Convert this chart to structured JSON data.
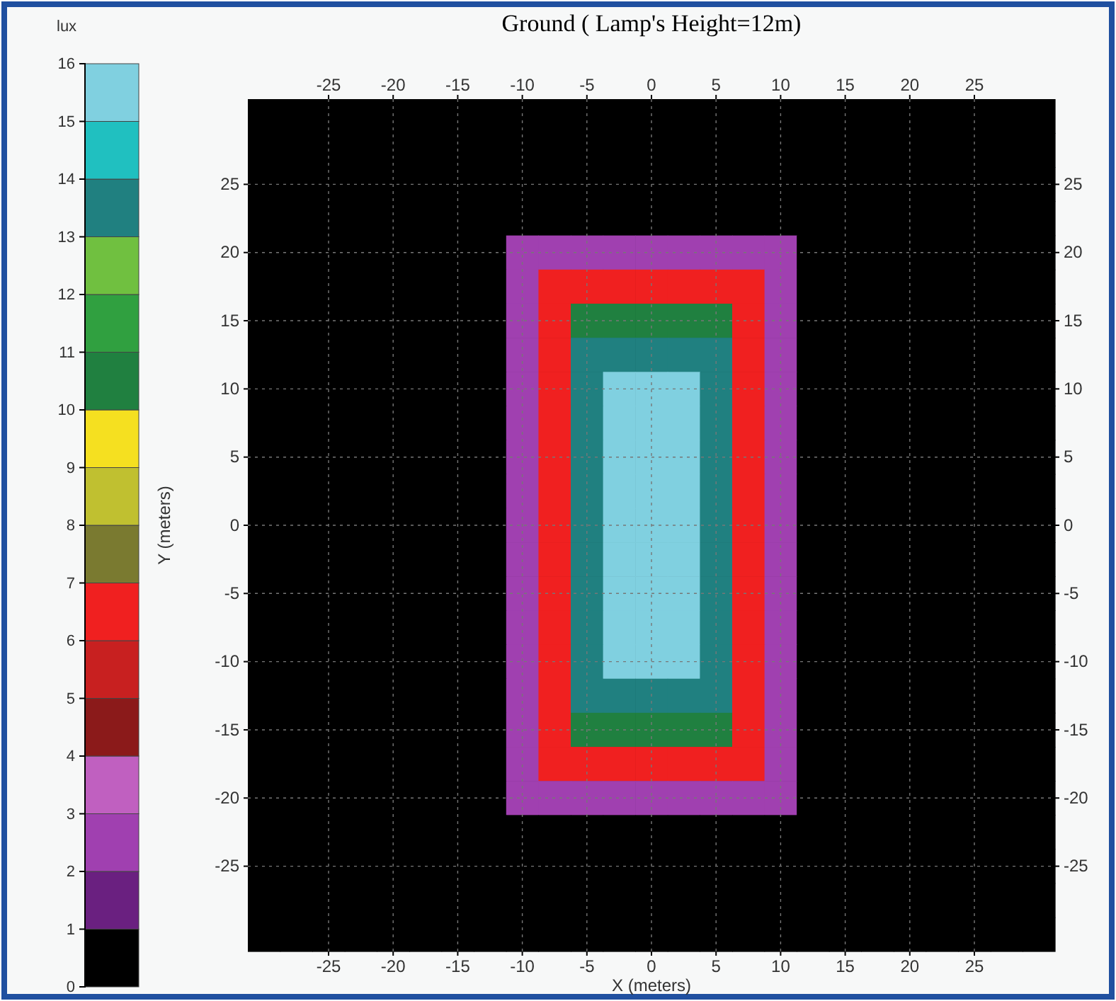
{
  "chart_data": {
    "type": "heatmap",
    "title": "Ground ( Lamp's Height=12m)",
    "xlabel": "X (meters)",
    "ylabel": "Y (meters)",
    "clabel": "lux",
    "categories": [
      null,
      null,
      "-25",
      null,
      "-20",
      null,
      "-15",
      null,
      "-10",
      null,
      "-5",
      null,
      "0",
      null,
      "5",
      null,
      "10",
      null,
      "15",
      null,
      "20",
      null,
      "25",
      null,
      null
    ],
    "y_categories": [
      null,
      null,
      "25",
      null,
      "20",
      null,
      "15",
      null,
      "10",
      null,
      "5",
      null,
      "0",
      null,
      "-5",
      null,
      "-10",
      null,
      "-15",
      null,
      "-20",
      null,
      "-25",
      null,
      null
    ],
    "y2_categories": [
      null,
      null,
      "25",
      null,
      "20",
      null,
      "15",
      null,
      "10",
      null,
      "5",
      null,
      "0",
      null,
      "-5",
      null,
      "-10",
      null,
      "-15",
      null,
      "-20",
      null,
      "-25",
      null,
      null
    ],
    "cells": [
      [
        0.5,
        0.5,
        0.5,
        0.5,
        0.5,
        0.5,
        0.5,
        0.5,
        0.5,
        0.5,
        0.5,
        0.5,
        0.5,
        0.5,
        0.5,
        0.5,
        0.5,
        0.5,
        0.5,
        0.5,
        0.5,
        0.5,
        0.5,
        0.5,
        0.5
      ],
      [
        0.5,
        0.5,
        0.5,
        0.5,
        0.5,
        0.5,
        0.5,
        0.5,
        0.5,
        0.5,
        0.5,
        0.5,
        0.5,
        0.5,
        0.5,
        0.5,
        0.5,
        0.5,
        0.5,
        0.5,
        0.5,
        0.5,
        0.5,
        0.5,
        0.5
      ],
      [
        0.5,
        0.5,
        0.5,
        0.5,
        0.5,
        0.5,
        0.5,
        0.5,
        0.5,
        0.5,
        0.5,
        0.5,
        0.5,
        0.5,
        0.5,
        0.5,
        0.5,
        0.5,
        0.5,
        0.5,
        0.5,
        0.5,
        0.5,
        0.5,
        0.5
      ],
      [
        0.5,
        0.5,
        0.5,
        0.5,
        0.5,
        0.5,
        0.5,
        0.5,
        0.5,
        0.5,
        0.5,
        0.5,
        0.5,
        0.5,
        0.5,
        0.5,
        0.5,
        0.5,
        0.5,
        0.5,
        0.5,
        0.5,
        0.5,
        0.5,
        0.5
      ],
      [
        0.5,
        0.5,
        0.5,
        0.5,
        0.5,
        0.5,
        0.5,
        0.5,
        2.5,
        2.5,
        2.5,
        2.5,
        2.5,
        2.5,
        2.5,
        2.5,
        2.5,
        0.5,
        0.5,
        0.5,
        0.5,
        0.5,
        0.5,
        0.5,
        0.5
      ],
      [
        0.5,
        0.5,
        0.5,
        0.5,
        0.5,
        0.5,
        0.5,
        0.5,
        2.5,
        6.5,
        6.5,
        6.5,
        6.5,
        6.5,
        6.5,
        6.5,
        2.5,
        0.5,
        0.5,
        0.5,
        0.5,
        0.5,
        0.5,
        0.5,
        0.5
      ],
      [
        0.5,
        0.5,
        0.5,
        0.5,
        0.5,
        0.5,
        0.5,
        0.5,
        2.5,
        6.5,
        10.5,
        10.5,
        10.5,
        10.5,
        10.5,
        6.5,
        2.5,
        0.5,
        0.5,
        0.5,
        0.5,
        0.5,
        0.5,
        0.5,
        0.5
      ],
      [
        0.5,
        0.5,
        0.5,
        0.5,
        0.5,
        0.5,
        0.5,
        0.5,
        2.5,
        6.5,
        13.5,
        13.5,
        13.5,
        13.5,
        13.5,
        6.5,
        2.5,
        0.5,
        0.5,
        0.5,
        0.5,
        0.5,
        0.5,
        0.5,
        0.5
      ],
      [
        0.5,
        0.5,
        0.5,
        0.5,
        0.5,
        0.5,
        0.5,
        0.5,
        2.5,
        6.5,
        13.5,
        15.5,
        15.5,
        15.5,
        13.5,
        6.5,
        2.5,
        0.5,
        0.5,
        0.5,
        0.5,
        0.5,
        0.5,
        0.5,
        0.5
      ],
      [
        0.5,
        0.5,
        0.5,
        0.5,
        0.5,
        0.5,
        0.5,
        0.5,
        2.5,
        6.5,
        13.5,
        15.5,
        15.5,
        15.5,
        13.5,
        6.5,
        2.5,
        0.5,
        0.5,
        0.5,
        0.5,
        0.5,
        0.5,
        0.5,
        0.5
      ],
      [
        0.5,
        0.5,
        0.5,
        0.5,
        0.5,
        0.5,
        0.5,
        0.5,
        2.5,
        6.5,
        13.5,
        15.5,
        15.5,
        15.5,
        13.5,
        6.5,
        2.5,
        0.5,
        0.5,
        0.5,
        0.5,
        0.5,
        0.5,
        0.5,
        0.5
      ],
      [
        0.5,
        0.5,
        0.5,
        0.5,
        0.5,
        0.5,
        0.5,
        0.5,
        2.5,
        6.5,
        13.5,
        15.5,
        15.5,
        15.5,
        13.5,
        6.5,
        2.5,
        0.5,
        0.5,
        0.5,
        0.5,
        0.5,
        0.5,
        0.5,
        0.5
      ],
      [
        0.5,
        0.5,
        0.5,
        0.5,
        0.5,
        0.5,
        0.5,
        0.5,
        2.5,
        6.5,
        13.5,
        15.5,
        15.5,
        15.5,
        13.5,
        6.5,
        2.5,
        0.5,
        0.5,
        0.5,
        0.5,
        0.5,
        0.5,
        0.5,
        0.5
      ],
      [
        0.5,
        0.5,
        0.5,
        0.5,
        0.5,
        0.5,
        0.5,
        0.5,
        2.5,
        6.5,
        13.5,
        15.5,
        15.5,
        15.5,
        13.5,
        6.5,
        2.5,
        0.5,
        0.5,
        0.5,
        0.5,
        0.5,
        0.5,
        0.5,
        0.5
      ],
      [
        0.5,
        0.5,
        0.5,
        0.5,
        0.5,
        0.5,
        0.5,
        0.5,
        2.5,
        6.5,
        13.5,
        15.5,
        15.5,
        15.5,
        13.5,
        6.5,
        2.5,
        0.5,
        0.5,
        0.5,
        0.5,
        0.5,
        0.5,
        0.5,
        0.5
      ],
      [
        0.5,
        0.5,
        0.5,
        0.5,
        0.5,
        0.5,
        0.5,
        0.5,
        2.5,
        6.5,
        13.5,
        15.5,
        15.5,
        15.5,
        13.5,
        6.5,
        2.5,
        0.5,
        0.5,
        0.5,
        0.5,
        0.5,
        0.5,
        0.5,
        0.5
      ],
      [
        0.5,
        0.5,
        0.5,
        0.5,
        0.5,
        0.5,
        0.5,
        0.5,
        2.5,
        6.5,
        13.5,
        15.5,
        15.5,
        15.5,
        13.5,
        6.5,
        2.5,
        0.5,
        0.5,
        0.5,
        0.5,
        0.5,
        0.5,
        0.5,
        0.5
      ],
      [
        0.5,
        0.5,
        0.5,
        0.5,
        0.5,
        0.5,
        0.5,
        0.5,
        2.5,
        6.5,
        13.5,
        13.5,
        13.5,
        13.5,
        13.5,
        6.5,
        2.5,
        0.5,
        0.5,
        0.5,
        0.5,
        0.5,
        0.5,
        0.5,
        0.5
      ],
      [
        0.5,
        0.5,
        0.5,
        0.5,
        0.5,
        0.5,
        0.5,
        0.5,
        2.5,
        6.5,
        10.5,
        10.5,
        10.5,
        10.5,
        10.5,
        6.5,
        2.5,
        0.5,
        0.5,
        0.5,
        0.5,
        0.5,
        0.5,
        0.5,
        0.5
      ],
      [
        0.5,
        0.5,
        0.5,
        0.5,
        0.5,
        0.5,
        0.5,
        0.5,
        2.5,
        6.5,
        6.5,
        6.5,
        6.5,
        6.5,
        6.5,
        6.5,
        2.5,
        0.5,
        0.5,
        0.5,
        0.5,
        0.5,
        0.5,
        0.5,
        0.5
      ],
      [
        0.5,
        0.5,
        0.5,
        0.5,
        0.5,
        0.5,
        0.5,
        0.5,
        2.5,
        2.5,
        2.5,
        2.5,
        2.5,
        2.5,
        2.5,
        2.5,
        2.5,
        0.5,
        0.5,
        0.5,
        0.5,
        0.5,
        0.5,
        0.5,
        0.5
      ],
      [
        0.5,
        0.5,
        0.5,
        0.5,
        0.5,
        0.5,
        0.5,
        0.5,
        0.5,
        0.5,
        0.5,
        0.5,
        0.5,
        0.5,
        0.5,
        0.5,
        0.5,
        0.5,
        0.5,
        0.5,
        0.5,
        0.5,
        0.5,
        0.5,
        0.5
      ],
      [
        0.5,
        0.5,
        0.5,
        0.5,
        0.5,
        0.5,
        0.5,
        0.5,
        0.5,
        0.5,
        0.5,
        0.5,
        0.5,
        0.5,
        0.5,
        0.5,
        0.5,
        0.5,
        0.5,
        0.5,
        0.5,
        0.5,
        0.5,
        0.5,
        0.5
      ],
      [
        0.5,
        0.5,
        0.5,
        0.5,
        0.5,
        0.5,
        0.5,
        0.5,
        0.5,
        0.5,
        0.5,
        0.5,
        0.5,
        0.5,
        0.5,
        0.5,
        0.5,
        0.5,
        0.5,
        0.5,
        0.5,
        0.5,
        0.5,
        0.5,
        0.5
      ],
      [
        0.5,
        0.5,
        0.5,
        0.5,
        0.5,
        0.5,
        0.5,
        0.5,
        0.5,
        0.5,
        0.5,
        0.5,
        0.5,
        0.5,
        0.5,
        0.5,
        0.5,
        0.5,
        0.5,
        0.5,
        0.5,
        0.5,
        0.5,
        0.5,
        0.5
      ]
    ],
    "clim": [
      0,
      16
    ],
    "cticks": [
      0,
      1,
      2,
      3,
      4,
      5,
      6,
      7,
      8,
      9,
      10,
      11,
      12,
      13,
      14,
      15,
      16
    ],
    "colors": [
      "#000000",
      "#6a2080",
      "#a040b0",
      "#c060c0",
      "#8b1a1a",
      "#c82020",
      "#f02020",
      "#7a7a30",
      "#c0c030",
      "#f5e020",
      "#208040",
      "#30a040",
      "#70c040",
      "#208080",
      "#20c0c0",
      "#80d0e0"
    ],
    "grid": true
  }
}
